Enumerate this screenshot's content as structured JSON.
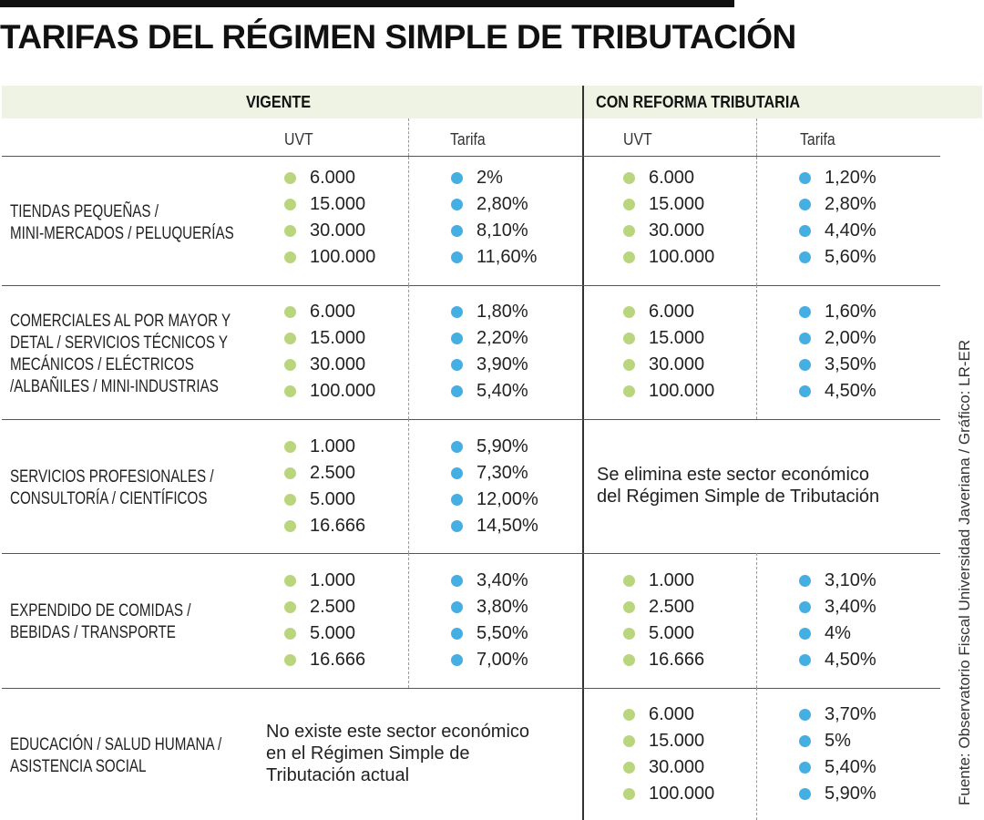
{
  "title": "TARIFAS DEL RÉGIMEN SIMPLE DE TRIBUTACIÓN",
  "source": "Fuente: Observatorio Fiscal Universidad Javeriana / Gráfico: LR-ER",
  "colors": {
    "uvt_dot": "#b9d57e",
    "tarifa_dot": "#45aee3",
    "header_band": "#eef3e3"
  },
  "headers": {
    "vigente": "VIGENTE",
    "reforma": "CON REFORMA TRIBUTARIA",
    "uvt": "UVT",
    "tarifa": "Tarifa"
  },
  "sectors": [
    {
      "label_lines": [
        "TIENDAS PEQUEÑAS /",
        "MINI-MERCADOS / PELUQUERÍAS"
      ],
      "vigente": {
        "uvt": [
          "6.000",
          "15.000",
          "30.000",
          "100.000"
        ],
        "tarifa": [
          "2%",
          "2,80%",
          "8,10%",
          "11,60%"
        ]
      },
      "reforma": {
        "uvt": [
          "6.000",
          "15.000",
          "30.000",
          "100.000"
        ],
        "tarifa": [
          "1,20%",
          "2,80%",
          "4,40%",
          "5,60%"
        ]
      }
    },
    {
      "label_lines": [
        "COMERCIALES AL POR MAYOR Y",
        "DETAL / SERVICIOS TÉCNICOS Y",
        "MECÁNICOS / ELÉCTRICOS",
        "/ALBAÑILES / MINI-INDUSTRIAS"
      ],
      "vigente": {
        "uvt": [
          "6.000",
          "15.000",
          "30.000",
          "100.000"
        ],
        "tarifa": [
          "1,80%",
          "2,20%",
          "3,90%",
          "5,40%"
        ]
      },
      "reforma": {
        "uvt": [
          "6.000",
          "15.000",
          "30.000",
          "100.000"
        ],
        "tarifa": [
          "1,60%",
          "2,00%",
          "3,50%",
          "4,50%"
        ]
      }
    },
    {
      "label_lines": [
        "SERVICIOS PROFESIONALES /",
        "CONSULTORÍA / CIENTÍFICOS"
      ],
      "vigente": {
        "uvt": [
          "1.000",
          "2.500",
          "5.000",
          "16.666"
        ],
        "tarifa": [
          "5,90%",
          "7,30%",
          "12,00%",
          "14,50%"
        ]
      },
      "reforma_note": [
        "Se elimina este sector económico",
        "del Régimen Simple de Tributación"
      ]
    },
    {
      "label_lines": [
        "EXPENDIDO DE COMIDAS /",
        "BEBIDAS / TRANSPORTE"
      ],
      "vigente": {
        "uvt": [
          "1.000",
          "2.500",
          "5.000",
          "16.666"
        ],
        "tarifa": [
          "3,40%",
          "3,80%",
          "5,50%",
          "7,00%"
        ]
      },
      "reforma": {
        "uvt": [
          "1.000",
          "2.500",
          "5.000",
          "16.666"
        ],
        "tarifa": [
          "3,10%",
          "3,40%",
          "4%",
          "4,50%"
        ]
      }
    },
    {
      "label_lines": [
        "EDUCACIÓN / SALUD HUMANA /",
        "ASISTENCIA SOCIAL"
      ],
      "vigente_note": [
        "No existe este sector económico",
        "en el Régimen Simple de",
        "Tributación actual"
      ],
      "reforma": {
        "uvt": [
          "6.000",
          "15.000",
          "30.000",
          "100.000"
        ],
        "tarifa": [
          "3,70%",
          "5%",
          "5,40%",
          "5,90%"
        ]
      }
    }
  ]
}
